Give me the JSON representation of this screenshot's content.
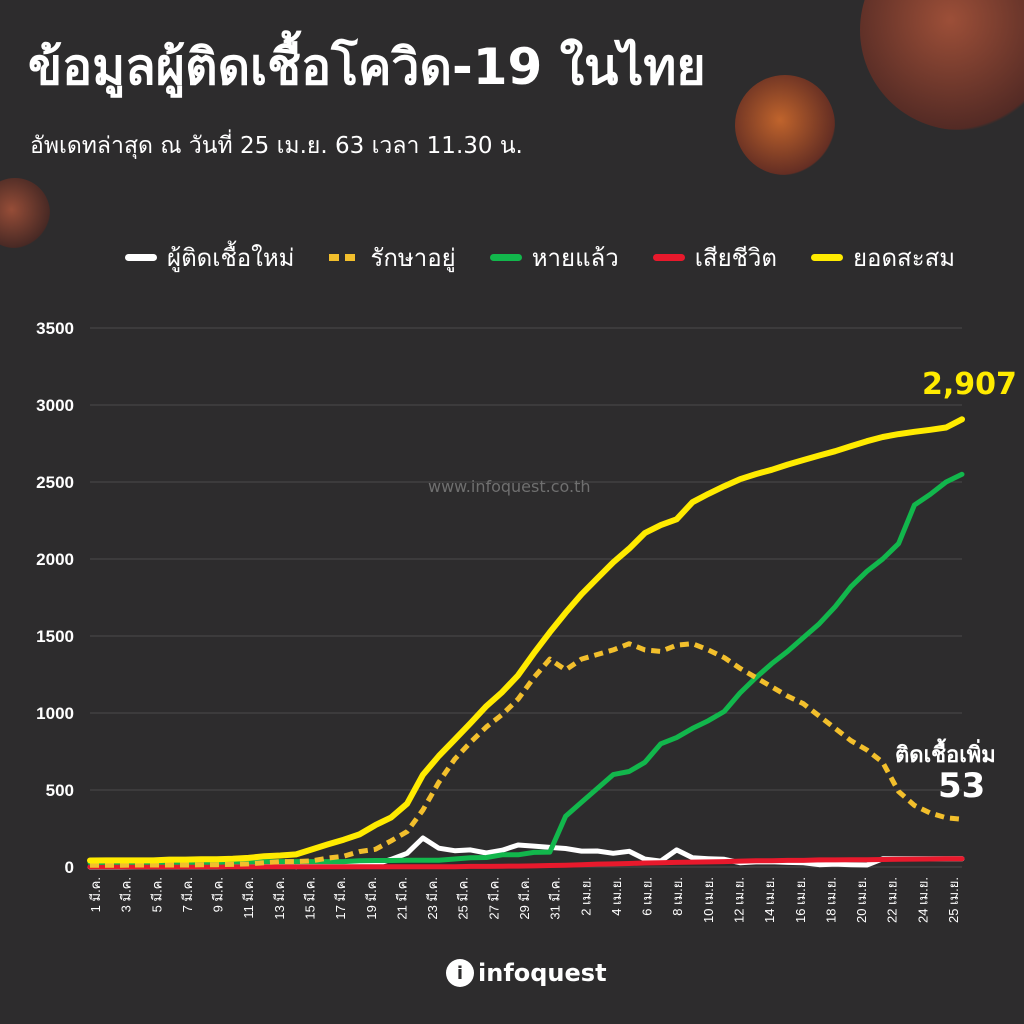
{
  "title": "ข้อมูลผู้ติดเชื้อโควิด-19 ในไทย",
  "subtitle": "อัพเดทล่าสุด ณ วันที่ 25 เม.ย. 63 เวลา 11.30 น.",
  "watermark": "www.infoquest.co.th",
  "logo": {
    "icon": "i",
    "text": "infoquest"
  },
  "annotations": {
    "new_cases_label": "ติดเชื้อเพิ่ม",
    "new_cases_value": "53",
    "total_value": "2,907"
  },
  "colors": {
    "background": "#2d2c2d",
    "new_cases": "#ffffff",
    "active": "#f2bf2c",
    "recovered": "#12b74c",
    "deaths": "#e8192c",
    "total": "#ffeb00"
  },
  "chart_data": {
    "type": "line",
    "ylim": [
      0,
      3500
    ],
    "yticks": [
      0,
      500,
      1000,
      1500,
      2000,
      2500,
      3000,
      3500
    ],
    "grid": true,
    "legend_position": "top",
    "x_tick_labels": [
      "1 มี.ค.",
      "3 มี.ค.",
      "5 มี.ค.",
      "7 มี.ค.",
      "9 มี.ค.",
      "11 มี.ค.",
      "13 มี.ค.",
      "15 มี.ค.",
      "17 มี.ค.",
      "19 มี.ค.",
      "21 มี.ค.",
      "23 มี.ค.",
      "25 มี.ค.",
      "27 มี.ค.",
      "29 มี.ค.",
      "31 มี.ค.",
      "2 เม.ย.",
      "4 เม.ย.",
      "6 เม.ย.",
      "8 เม.ย.",
      "10 เม.ย.",
      "12 เม.ย.",
      "14 เม.ย.",
      "16 เม.ย.",
      "18 เม.ย.",
      "20 เม.ย.",
      "22 เม.ย.",
      "24 เม.ย.",
      "25 เม.ย."
    ],
    "series": [
      {
        "name": "ผู้ติดเชื้อใหม่",
        "color": "#ffffff",
        "style": "solid",
        "values": [
          0,
          0,
          0,
          1,
          1,
          1,
          1,
          1,
          2,
          4,
          6,
          11,
          16,
          2,
          30,
          32,
          14,
          33,
          16,
          50,
          89,
          188,
          122,
          106,
          111,
          91,
          109,
          143,
          136,
          127,
          120,
          103,
          104,
          89,
          102,
          51,
          38,
          111,
          60,
          54,
          50,
          28,
          33,
          34,
          30,
          27,
          15,
          19,
          15,
          13,
          53,
          53,
          53,
          53,
          53,
          53
        ]
      },
      {
        "name": "รักษาอยู่",
        "color": "#f2bf2c",
        "style": "dotted",
        "values": [
          12,
          12,
          12,
          13,
          13,
          13,
          13,
          14,
          15,
          17,
          20,
          28,
          35,
          35,
          40,
          58,
          70,
          100,
          115,
          170,
          230,
          370,
          550,
          700,
          810,
          910,
          990,
          1090,
          1230,
          1350,
          1280,
          1350,
          1380,
          1410,
          1450,
          1410,
          1400,
          1440,
          1450,
          1410,
          1360,
          1290,
          1230,
          1170,
          1110,
          1060,
          980,
          900,
          820,
          760,
          680,
          490,
          400,
          350,
          320,
          310
        ]
      },
      {
        "name": "หายแล้ว",
        "color": "#12b74c",
        "style": "solid",
        "values": [
          28,
          31,
          31,
          31,
          31,
          31,
          31,
          31,
          31,
          33,
          33,
          35,
          35,
          35,
          35,
          35,
          35,
          41,
          42,
          42,
          44,
          44,
          44,
          52,
          60,
          62,
          79,
          79,
          95,
          97,
          330,
          420,
          510,
          600,
          620,
          680,
          800,
          840,
          900,
          950,
          1010,
          1130,
          1230,
          1320,
          1400,
          1490,
          1580,
          1690,
          1820,
          1920,
          2000,
          2100,
          2350,
          2420,
          2500,
          2550
        ]
      },
      {
        "name": "เสียชีวิต",
        "color": "#e8192c",
        "style": "solid",
        "values": [
          1,
          1,
          1,
          1,
          1,
          1,
          1,
          1,
          1,
          1,
          1,
          1,
          1,
          1,
          1,
          1,
          1,
          1,
          1,
          1,
          1,
          1,
          1,
          1,
          4,
          4,
          5,
          6,
          7,
          10,
          12,
          15,
          19,
          20,
          23,
          26,
          27,
          30,
          32,
          33,
          35,
          38,
          40,
          41,
          43,
          43,
          46,
          46,
          47,
          47,
          49,
          50,
          51,
          52,
          53,
          54
        ]
      },
      {
        "name": "ยอดสะสม",
        "color": "#ffeb00",
        "style": "solid",
        "values": [
          42,
          43,
          43,
          43,
          43,
          48,
          48,
          50,
          50,
          53,
          59,
          70,
          75,
          82,
          114,
          147,
          177,
          212,
          272,
          322,
          411,
          599,
          721,
          827,
          934,
          1045,
          1136,
          1245,
          1388,
          1524,
          1651,
          1771,
          1875,
          1978,
          2067,
          2169,
          2220,
          2258,
          2369,
          2423,
          2473,
          2518,
          2551,
          2579,
          2613,
          2643,
          2672,
          2700,
          2733,
          2765,
          2792,
          2811,
          2826,
          2839,
          2854,
          2907
        ]
      }
    ]
  }
}
